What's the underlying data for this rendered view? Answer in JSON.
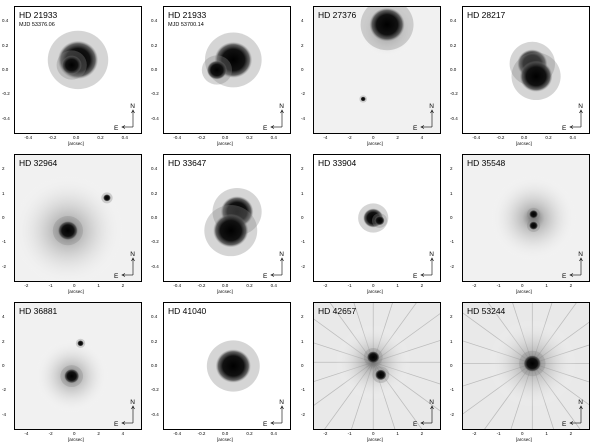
{
  "chart_data": [
    {
      "type": "image",
      "title": "HD 21933",
      "subtitle": "MJD 53376.06",
      "xlabel": "[arcsec]",
      "ylabel": "[arcsec]",
      "ticks": [
        "-0.4",
        "-0.2",
        "0.0",
        "0.2",
        "0.4"
      ],
      "compass": {
        "n": "N",
        "e": "E"
      }
    },
    {
      "type": "image",
      "title": "HD 21933",
      "subtitle": "MJD 53700.14",
      "xlabel": "[arcsec]",
      "ylabel": "[arcsec]",
      "ticks": [
        "-0.4",
        "-0.2",
        "0.0",
        "0.2",
        "0.4"
      ],
      "compass": {
        "n": "N",
        "e": "E"
      }
    },
    {
      "type": "image",
      "title": "HD 27376",
      "subtitle": "",
      "xlabel": "[arcsec]",
      "ylabel": "[arcsec]",
      "ticks": [
        "-4",
        "-2",
        "0",
        "2",
        "4"
      ],
      "compass": {
        "n": "N",
        "e": "E"
      }
    },
    {
      "type": "image",
      "title": "HD 28217",
      "subtitle": "",
      "xlabel": "[arcsec]",
      "ylabel": "[arcsec]",
      "ticks": [
        "-0.4",
        "-0.2",
        "0.0",
        "0.2",
        "0.4"
      ],
      "compass": {
        "n": "N",
        "e": "E"
      }
    },
    {
      "type": "image",
      "title": "HD 32964",
      "subtitle": "",
      "xlabel": "[arcsec]",
      "ylabel": "[arcsec]",
      "ticks": [
        "-2",
        "-1",
        "0",
        "1",
        "2"
      ],
      "compass": {
        "n": "N",
        "e": "E"
      }
    },
    {
      "type": "image",
      "title": "HD 33647",
      "subtitle": "",
      "xlabel": "[arcsec]",
      "ylabel": "[arcsec]",
      "ticks": [
        "-0.4",
        "-0.2",
        "0.0",
        "0.2",
        "0.4"
      ],
      "compass": {
        "n": "N",
        "e": "E"
      }
    },
    {
      "type": "image",
      "title": "HD 33904",
      "subtitle": "",
      "xlabel": "[arcsec]",
      "ylabel": "[arcsec]",
      "ticks": [
        "-2",
        "-1",
        "0",
        "1",
        "2"
      ],
      "compass": {
        "n": "N",
        "e": "E"
      }
    },
    {
      "type": "image",
      "title": "HD 35548",
      "subtitle": "",
      "xlabel": "[arcsec]",
      "ylabel": "[arcsec]",
      "ticks": [
        "-2",
        "-1",
        "0",
        "1",
        "2"
      ],
      "compass": {
        "n": "N",
        "e": "E"
      }
    },
    {
      "type": "image",
      "title": "HD 36881",
      "subtitle": "",
      "xlabel": "[arcsec]",
      "ylabel": "[arcsec]",
      "ticks": [
        "-4",
        "-2",
        "0",
        "2",
        "4"
      ],
      "compass": {
        "n": "N",
        "e": "E"
      }
    },
    {
      "type": "image",
      "title": "HD 41040",
      "subtitle": "",
      "xlabel": "[arcsec]",
      "ylabel": "[arcsec]",
      "ticks": [
        "-0.4",
        "-0.2",
        "0.0",
        "0.2",
        "0.4"
      ],
      "compass": {
        "n": "N",
        "e": "E"
      }
    },
    {
      "type": "image",
      "title": "HD 42657",
      "subtitle": "",
      "xlabel": "[arcsec]",
      "ylabel": "[arcsec]",
      "ticks": [
        "-2",
        "-1",
        "0",
        "1",
        "2"
      ],
      "compass": {
        "n": "N",
        "e": "E"
      }
    },
    {
      "type": "image",
      "title": "HD 53244",
      "subtitle": "",
      "xlabel": "[arcsec]",
      "ylabel": "[arcsec]",
      "ticks": [
        "-2",
        "-1",
        "0",
        "1",
        "2"
      ],
      "compass": {
        "n": "N",
        "e": "E"
      }
    }
  ]
}
